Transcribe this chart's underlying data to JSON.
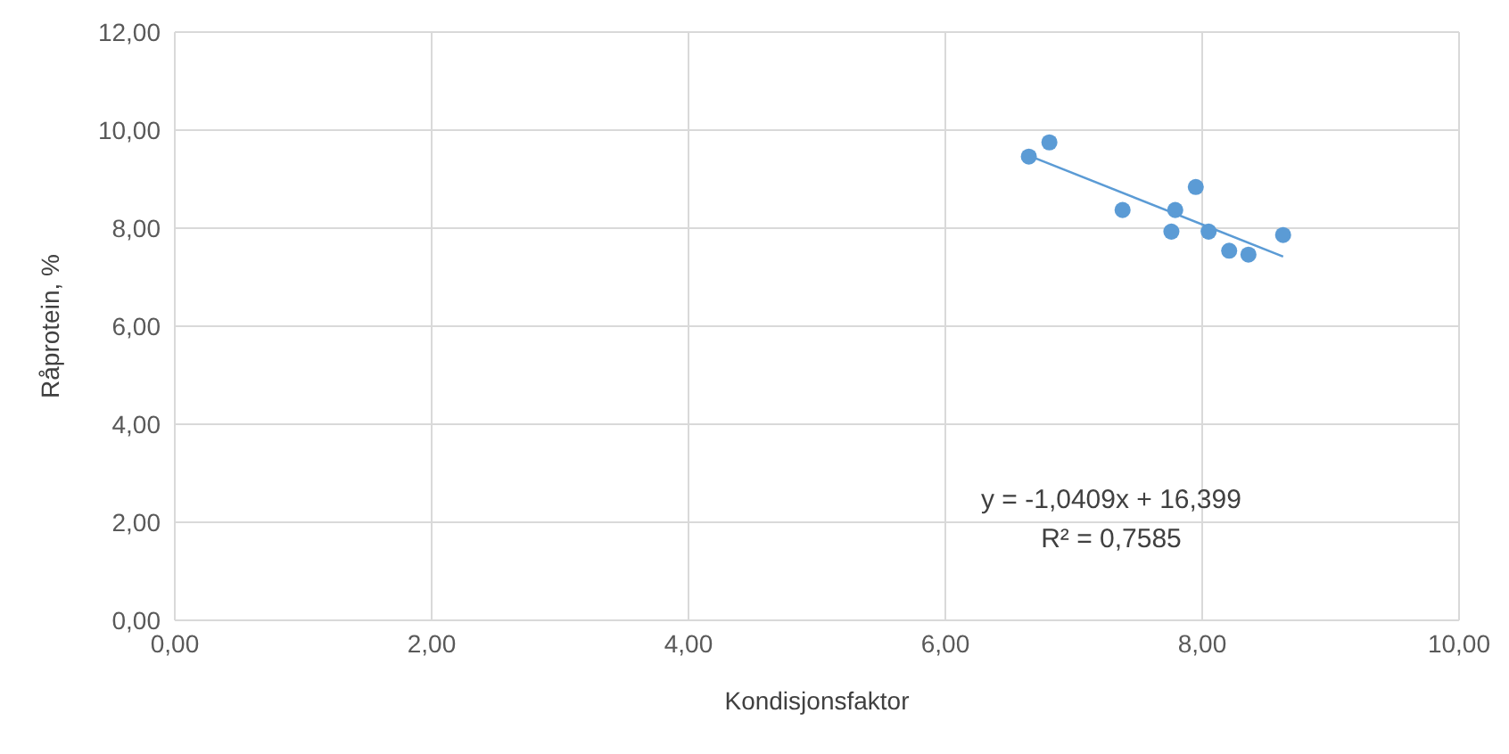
{
  "chart_data": {
    "type": "scatter",
    "xlabel": "Kondisjonsfaktor",
    "ylabel": "Råprotein, %",
    "xlim": [
      0,
      10
    ],
    "ylim": [
      0,
      12
    ],
    "xticks": [
      {
        "value": 0,
        "label": "0,00"
      },
      {
        "value": 2,
        "label": "2,00"
      },
      {
        "value": 4,
        "label": "4,00"
      },
      {
        "value": 6,
        "label": "6,00"
      },
      {
        "value": 8,
        "label": "8,00"
      },
      {
        "value": 10,
        "label": "10,00"
      }
    ],
    "yticks": [
      {
        "value": 0,
        "label": "0,00"
      },
      {
        "value": 2,
        "label": "2,00"
      },
      {
        "value": 4,
        "label": "4,00"
      },
      {
        "value": 6,
        "label": "6,00"
      },
      {
        "value": 8,
        "label": "8,00"
      },
      {
        "value": 10,
        "label": "10,00"
      },
      {
        "value": 12,
        "label": "12,00"
      }
    ],
    "grid": true,
    "marker": "circle",
    "series": [
      {
        "color": "#5b9bd5",
        "x": [
          6.65,
          6.81,
          7.38,
          7.79,
          7.76,
          7.95,
          8.05,
          8.21,
          8.36,
          8.63
        ],
        "values": [
          9.46,
          9.75,
          8.37,
          8.37,
          7.93,
          8.84,
          7.93,
          7.54,
          7.46,
          7.86
        ]
      },
      {
        "type": "line",
        "marker": "none",
        "color": "#5b9bd5",
        "x": [
          6.65,
          8.63
        ],
        "values": [
          9.48,
          7.42
        ]
      }
    ],
    "annotations": [
      "y = -1,0409x + 16,399",
      "R² = 0,7585"
    ]
  }
}
